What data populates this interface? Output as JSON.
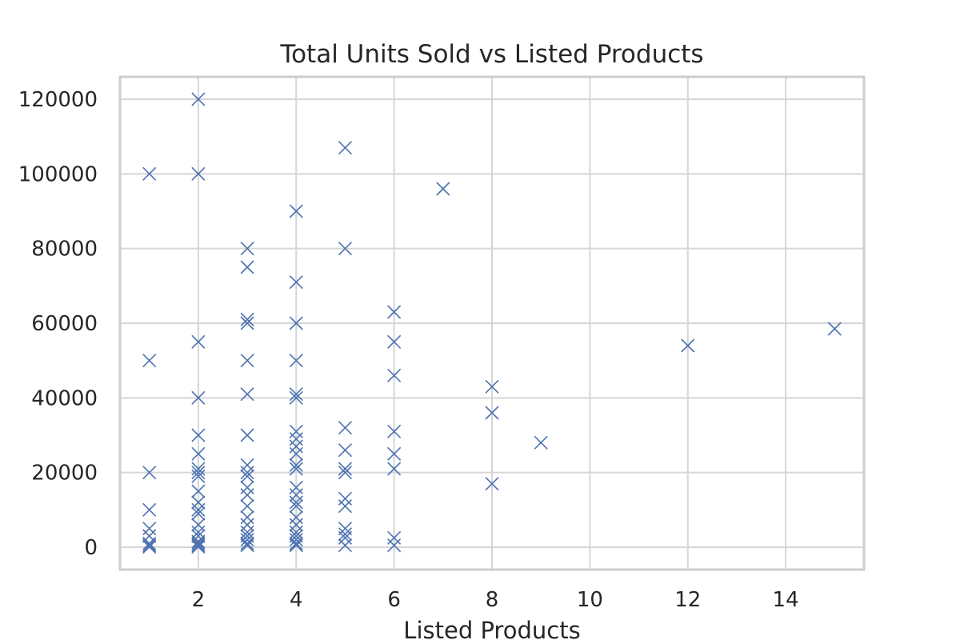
{
  "chart_data": {
    "type": "scatter",
    "title": "Total Units Sold vs Listed Products",
    "xlabel": "Listed Products",
    "ylabel": "",
    "xlim": [
      0.4,
      15.6
    ],
    "ylim": [
      -6000,
      126000
    ],
    "xticks": [
      2,
      4,
      6,
      8,
      10,
      12,
      14
    ],
    "yticks": [
      0,
      20000,
      40000,
      60000,
      80000,
      100000,
      120000
    ],
    "grid": true,
    "marker": "x",
    "color": "#4c72b0",
    "series": [
      {
        "points": [
          [
            1,
            100000
          ],
          [
            1,
            50000
          ],
          [
            1,
            20000
          ],
          [
            1,
            10000
          ],
          [
            1,
            5000
          ],
          [
            1,
            3000
          ],
          [
            1,
            1000
          ],
          [
            1,
            500
          ],
          [
            1,
            100
          ],
          [
            2,
            120000
          ],
          [
            2,
            100000
          ],
          [
            2,
            55000
          ],
          [
            2,
            40000
          ],
          [
            2,
            30000
          ],
          [
            2,
            25000
          ],
          [
            2,
            21000
          ],
          [
            2,
            20000
          ],
          [
            2,
            19000
          ],
          [
            2,
            15000
          ],
          [
            2,
            12000
          ],
          [
            2,
            10000
          ],
          [
            2,
            9000
          ],
          [
            2,
            6000
          ],
          [
            2,
            4000
          ],
          [
            2,
            3000
          ],
          [
            2,
            1500
          ],
          [
            2,
            1000
          ],
          [
            2,
            500
          ],
          [
            2,
            100
          ],
          [
            3,
            80000
          ],
          [
            3,
            75000
          ],
          [
            3,
            61000
          ],
          [
            3,
            60000
          ],
          [
            3,
            50000
          ],
          [
            3,
            41000
          ],
          [
            3,
            30000
          ],
          [
            3,
            22000
          ],
          [
            3,
            20000
          ],
          [
            3,
            19000
          ],
          [
            3,
            16000
          ],
          [
            3,
            14000
          ],
          [
            3,
            11000
          ],
          [
            3,
            8000
          ],
          [
            3,
            6000
          ],
          [
            3,
            4000
          ],
          [
            3,
            3000
          ],
          [
            3,
            2000
          ],
          [
            3,
            1000
          ],
          [
            3,
            500
          ],
          [
            4,
            90000
          ],
          [
            4,
            71000
          ],
          [
            4,
            60000
          ],
          [
            4,
            50000
          ],
          [
            4,
            41000
          ],
          [
            4,
            40000
          ],
          [
            4,
            31000
          ],
          [
            4,
            29000
          ],
          [
            4,
            27000
          ],
          [
            4,
            25000
          ],
          [
            4,
            22000
          ],
          [
            4,
            21000
          ],
          [
            4,
            16000
          ],
          [
            4,
            14000
          ],
          [
            4,
            12000
          ],
          [
            4,
            11000
          ],
          [
            4,
            8000
          ],
          [
            4,
            6000
          ],
          [
            4,
            4000
          ],
          [
            4,
            3000
          ],
          [
            4,
            2000
          ],
          [
            4,
            1000
          ],
          [
            4,
            500
          ],
          [
            5,
            107000
          ],
          [
            5,
            80000
          ],
          [
            5,
            32000
          ],
          [
            5,
            26000
          ],
          [
            5,
            21000
          ],
          [
            5,
            20000
          ],
          [
            5,
            13000
          ],
          [
            5,
            11000
          ],
          [
            5,
            5000
          ],
          [
            5,
            3500
          ],
          [
            5,
            2500
          ],
          [
            5,
            500
          ],
          [
            6,
            63000
          ],
          [
            6,
            55000
          ],
          [
            6,
            46000
          ],
          [
            6,
            31000
          ],
          [
            6,
            25000
          ],
          [
            6,
            21000
          ],
          [
            6,
            2500
          ],
          [
            6,
            500
          ],
          [
            7,
            96000
          ],
          [
            8,
            43000
          ],
          [
            8,
            36000
          ],
          [
            8,
            17000
          ],
          [
            9,
            28000
          ],
          [
            12,
            54000
          ],
          [
            15,
            58500
          ]
        ]
      }
    ]
  }
}
